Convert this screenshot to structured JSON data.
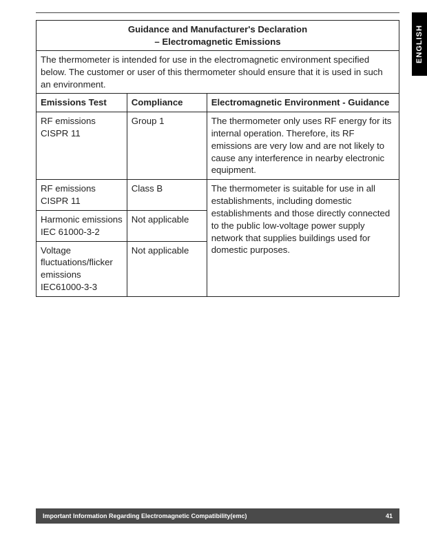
{
  "langTab": "ENGLISH",
  "table": {
    "titleLine1": "Guidance and Manufacturer's Declaration",
    "titleLine2": "– Electromagnetic Emissions",
    "intro": "The thermometer is intended for use in the electromagnetic environment specified below. The customer or user of this thermometer should ensure that it is used in such an environment.",
    "headers": {
      "c1": "Emissions Test",
      "c2": "Compliance",
      "c3": "Electromagnetic Environment - Guidance"
    },
    "rows": {
      "r1": {
        "c1": "RF emissions CISPR 11",
        "c2": "Group 1",
        "c3": "The thermometer only uses RF energy for its internal operation. Therefore, its RF emissions are very low and are not likely to cause any interference in nearby electronic equipment."
      },
      "r2": {
        "c1": "RF emissions CISPR 11",
        "c2": "Class B"
      },
      "r3": {
        "c1": "Harmonic emissions IEC 61000-3-2",
        "c2": "Not applicable"
      },
      "r4": {
        "c1": "Voltage fluctuations/flicker emissions IEC61000-3-3",
        "c2": "Not applicable"
      },
      "mergedC3": "The thermometer is suitable for use in all establishments, including domestic establishments and those directly connected to the public low-voltage power supply network that supplies buildings used for domestic purposes."
    }
  },
  "footer": {
    "text": "Important Information Regarding Electromagnetic Compatibility(emc)",
    "page": "41"
  },
  "colors": {
    "border": "#222222",
    "footerBg": "#4a4a4a",
    "text": "#222222",
    "tabBg": "#000000"
  }
}
